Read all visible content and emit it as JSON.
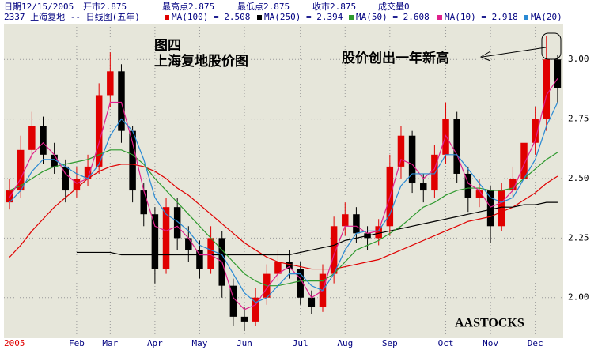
{
  "chart_data": {
    "type": "candlestick",
    "header": [
      "日期12/15/2005",
      "开市2.875",
      "最高点2.875",
      "最低点2.875",
      "收市2.875",
      "成交量0"
    ],
    "subtitle": "2337 上海复地 -- 日线图(五年)",
    "annotations": [
      "图四",
      "上海复地股价图",
      "股价创出一年新高",
      "AASTOCKS"
    ],
    "categories": [
      "2005",
      null,
      null,
      null,
      null,
      null,
      "Feb",
      null,
      null,
      "Mar",
      null,
      null,
      null,
      "Apr",
      null,
      null,
      null,
      "May",
      null,
      null,
      null,
      "Jun",
      null,
      null,
      null,
      null,
      "Jul",
      null,
      null,
      null,
      "Aug",
      null,
      null,
      null,
      "Sep",
      null,
      null,
      null,
      null,
      "Oct",
      null,
      null,
      null,
      "Nov",
      null,
      null,
      null,
      "Dec",
      null,
      null
    ],
    "open": [
      2.4,
      2.45,
      2.62,
      2.72,
      2.6,
      2.55,
      2.45,
      2.5,
      2.55,
      2.85,
      2.95,
      2.7,
      2.45,
      2.35,
      2.12,
      2.38,
      2.25,
      2.2,
      2.12,
      2.25,
      2.05,
      1.92,
      1.9,
      2.0,
      2.1,
      2.15,
      2.12,
      2.0,
      1.96,
      2.1,
      2.3,
      2.35,
      2.27,
      2.25,
      2.3,
      2.55,
      2.68,
      2.48,
      2.45,
      2.6,
      2.75,
      2.52,
      2.42,
      2.45,
      2.3,
      2.45,
      2.5,
      2.65,
      2.75,
      3.0
    ],
    "high": [
      2.5,
      2.68,
      2.78,
      2.76,
      2.65,
      2.58,
      2.55,
      2.6,
      2.9,
      3.03,
      2.98,
      2.72,
      2.48,
      2.38,
      2.42,
      2.42,
      2.3,
      2.24,
      2.3,
      2.28,
      2.08,
      1.96,
      2.04,
      2.14,
      2.2,
      2.2,
      2.15,
      2.03,
      2.14,
      2.34,
      2.4,
      2.38,
      2.3,
      2.33,
      2.6,
      2.72,
      2.7,
      2.52,
      2.64,
      2.82,
      2.78,
      2.55,
      2.5,
      2.47,
      2.48,
      2.55,
      2.7,
      2.8,
      3.1,
      3.02
    ],
    "low": [
      2.37,
      2.42,
      2.58,
      2.56,
      2.52,
      2.4,
      2.42,
      2.47,
      2.52,
      2.8,
      2.65,
      2.4,
      2.3,
      2.06,
      2.1,
      2.2,
      2.15,
      2.08,
      2.1,
      2.0,
      1.88,
      1.86,
      1.88,
      1.97,
      2.07,
      2.08,
      1.97,
      1.93,
      1.94,
      2.06,
      2.26,
      2.23,
      2.2,
      2.22,
      2.26,
      2.5,
      2.44,
      2.4,
      2.42,
      2.56,
      2.48,
      2.36,
      2.38,
      2.23,
      2.28,
      2.42,
      2.47,
      2.6,
      2.7,
      2.82
    ],
    "close": [
      2.45,
      2.62,
      2.72,
      2.6,
      2.55,
      2.45,
      2.5,
      2.55,
      2.85,
      2.95,
      2.7,
      2.45,
      2.35,
      2.12,
      2.38,
      2.25,
      2.2,
      2.12,
      2.25,
      2.05,
      1.92,
      1.9,
      2.0,
      2.1,
      2.15,
      2.12,
      2.0,
      1.96,
      2.1,
      2.3,
      2.35,
      2.27,
      2.25,
      2.3,
      2.55,
      2.68,
      2.48,
      2.45,
      2.6,
      2.75,
      2.52,
      2.42,
      2.45,
      2.3,
      2.45,
      2.5,
      2.65,
      2.75,
      3.0,
      2.88
    ],
    "up_color": "#e00000",
    "down_color": "#000000",
    "series": [
      {
        "name": "MA(100) = 2.508",
        "color": "#e00000",
        "values": [
          2.17,
          2.22,
          2.28,
          2.33,
          2.38,
          2.42,
          2.46,
          2.5,
          2.53,
          2.55,
          2.56,
          2.56,
          2.55,
          2.53,
          2.5,
          2.46,
          2.43,
          2.39,
          2.35,
          2.31,
          2.27,
          2.23,
          2.2,
          2.17,
          2.15,
          2.14,
          2.13,
          2.12,
          2.12,
          2.12,
          2.13,
          2.14,
          2.15,
          2.16,
          2.18,
          2.2,
          2.22,
          2.24,
          2.26,
          2.28,
          2.3,
          2.32,
          2.33,
          2.34,
          2.36,
          2.38,
          2.41,
          2.44,
          2.48,
          2.51
        ]
      },
      {
        "name": "MA(250) = 2.394",
        "color": "#000000",
        "values": [
          null,
          null,
          null,
          null,
          null,
          null,
          2.19,
          2.19,
          2.19,
          2.19,
          2.18,
          2.18,
          2.18,
          2.18,
          2.18,
          2.18,
          2.18,
          2.18,
          2.18,
          2.18,
          2.18,
          2.18,
          2.18,
          2.18,
          2.18,
          2.18,
          2.19,
          2.2,
          2.21,
          2.22,
          2.24,
          2.25,
          2.26,
          2.27,
          2.28,
          2.29,
          2.3,
          2.31,
          2.32,
          2.33,
          2.34,
          2.35,
          2.36,
          2.37,
          2.38,
          2.38,
          2.39,
          2.39,
          2.4,
          2.4
        ]
      },
      {
        "name": "MA(50) = 2.608",
        "color": "#2e9a2e",
        "values": [
          2.45,
          2.47,
          2.5,
          2.53,
          2.55,
          2.56,
          2.57,
          2.58,
          2.6,
          2.62,
          2.62,
          2.6,
          2.56,
          2.5,
          2.45,
          2.4,
          2.35,
          2.3,
          2.25,
          2.2,
          2.15,
          2.1,
          2.07,
          2.05,
          2.05,
          2.06,
          2.07,
          2.07,
          2.07,
          2.1,
          2.15,
          2.2,
          2.22,
          2.24,
          2.27,
          2.3,
          2.34,
          2.38,
          2.4,
          2.43,
          2.45,
          2.46,
          2.46,
          2.45,
          2.45,
          2.46,
          2.5,
          2.54,
          2.58,
          2.61
        ]
      },
      {
        "name": "MA(10) = 2.918",
        "color": "#e0208c",
        "values": [
          2.42,
          2.5,
          2.6,
          2.65,
          2.6,
          2.52,
          2.48,
          2.5,
          2.65,
          2.82,
          2.82,
          2.65,
          2.45,
          2.3,
          2.28,
          2.3,
          2.25,
          2.18,
          2.18,
          2.15,
          2.0,
          1.95,
          1.97,
          2.04,
          2.1,
          2.13,
          2.08,
          2.0,
          2.03,
          2.18,
          2.3,
          2.3,
          2.27,
          2.28,
          2.42,
          2.58,
          2.56,
          2.5,
          2.54,
          2.68,
          2.6,
          2.48,
          2.45,
          2.38,
          2.4,
          2.45,
          2.56,
          2.66,
          2.85,
          2.92
        ]
      },
      {
        "name": "MA(20)",
        "color": "#2a8ad4",
        "values": [
          2.4,
          2.45,
          2.53,
          2.58,
          2.58,
          2.55,
          2.52,
          2.5,
          2.56,
          2.68,
          2.75,
          2.7,
          2.58,
          2.42,
          2.35,
          2.32,
          2.28,
          2.22,
          2.2,
          2.18,
          2.1,
          2.02,
          1.98,
          2.0,
          2.05,
          2.1,
          2.1,
          2.05,
          2.03,
          2.1,
          2.2,
          2.27,
          2.28,
          2.28,
          2.35,
          2.47,
          2.52,
          2.52,
          2.52,
          2.6,
          2.6,
          2.54,
          2.48,
          2.42,
          2.4,
          2.42,
          2.5,
          2.58,
          2.72,
          2.82
        ]
      }
    ],
    "ylim": [
      1.83,
      3.15
    ],
    "yticks": [
      {
        "value": 2,
        "label": "2.00"
      },
      {
        "value": 2.25,
        "label": "2.25"
      },
      {
        "value": 2.5,
        "label": "2.50"
      },
      {
        "value": 2.75,
        "label": "2.75"
      },
      {
        "value": 3,
        "label": "3.00"
      }
    ],
    "grid": true
  }
}
